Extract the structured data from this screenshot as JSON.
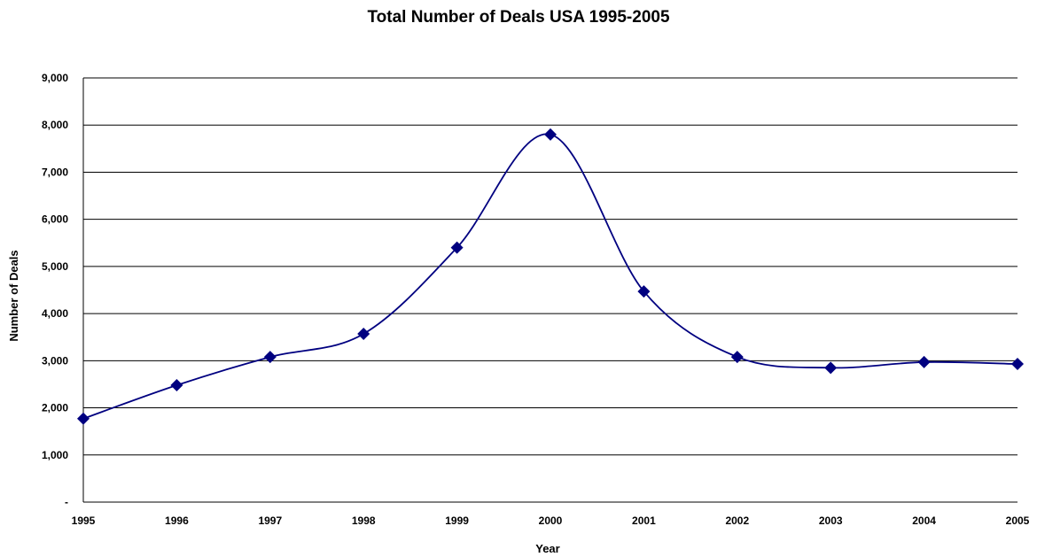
{
  "chart_data": {
    "type": "line",
    "title": "Total Number of Deals USA 1995-2005",
    "xlabel": "Year",
    "ylabel": "Number of Deals",
    "x": [
      "1995",
      "1996",
      "1997",
      "1998",
      "1999",
      "2000",
      "2001",
      "2002",
      "2003",
      "2004",
      "2005"
    ],
    "series": [
      {
        "values": [
          1770,
          2480,
          3080,
          3570,
          5400,
          7800,
          4470,
          3080,
          2850,
          2970,
          2930
        ]
      }
    ],
    "ylim": [
      0,
      9000
    ],
    "yticks": [
      0,
      1000,
      2000,
      3000,
      4000,
      5000,
      6000,
      7000,
      8000,
      9000
    ],
    "ytick_labels": [
      "-",
      "1,000",
      "2,000",
      "3,000",
      "4,000",
      "5,000",
      "6,000",
      "7,000",
      "8,000",
      "9,000"
    ],
    "grid": true,
    "legend": "none",
    "line_style": "smooth",
    "marker": "diamond",
    "series_color": "#000080"
  }
}
